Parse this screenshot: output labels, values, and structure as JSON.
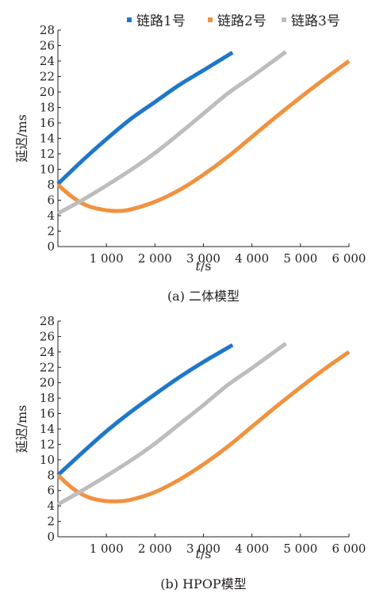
{
  "legend": {
    "items": [
      {
        "label": "链路1号",
        "color": "#1f77c9"
      },
      {
        "label": "链路2号",
        "color": "#f0923f"
      },
      {
        "label": "链路3号",
        "color": "#bdbdbd"
      }
    ]
  },
  "chart_data": [
    {
      "type": "line",
      "caption": "(a) 二体模型",
      "xlabel_italic": "t",
      "xlabel_unit": "/s",
      "ylabel": "延迟/ms",
      "xlim": [
        0,
        6000
      ],
      "ylim": [
        0,
        28
      ],
      "xticks": [
        1000,
        2000,
        3000,
        4000,
        5000,
        6000
      ],
      "xtick_labels": [
        "1 000",
        "2 000",
        "3 000",
        "4 000",
        "5 000",
        "6 000"
      ],
      "yticks": [
        0,
        2,
        4,
        6,
        8,
        10,
        12,
        14,
        16,
        18,
        20,
        22,
        24,
        26,
        28
      ],
      "ytick_labels": [
        "0",
        "2",
        "4",
        "6",
        "8",
        "10",
        "12",
        "14",
        "16",
        "18",
        "20",
        "22",
        "24",
        "26",
        "28"
      ],
      "series": [
        {
          "name": "链路1号",
          "color": "#1f77c9",
          "x": [
            0,
            500,
            1000,
            1500,
            2000,
            2500,
            3000,
            3600
          ],
          "y": [
            8.1,
            11.1,
            13.9,
            16.5,
            18.7,
            20.9,
            22.8,
            25.1
          ]
        },
        {
          "name": "链路2号",
          "color": "#f0923f",
          "x": [
            0,
            300,
            600,
            900,
            1200,
            1500,
            2000,
            2500,
            3000,
            3500,
            4000,
            4500,
            5000,
            5500,
            6000
          ],
          "y": [
            8.0,
            6.4,
            5.3,
            4.8,
            4.6,
            4.8,
            5.8,
            7.3,
            9.3,
            11.6,
            14.2,
            16.8,
            19.3,
            21.7,
            24.0
          ]
        },
        {
          "name": "链路3号",
          "color": "#bdbdbd",
          "x": [
            0,
            500,
            1000,
            1500,
            2000,
            2500,
            3000,
            3500,
            4000,
            4700
          ],
          "y": [
            4.3,
            6.0,
            7.9,
            9.9,
            12.1,
            14.6,
            17.2,
            19.8,
            22.0,
            25.2
          ]
        }
      ]
    },
    {
      "type": "line",
      "caption": "(b) HPOP模型",
      "xlabel_italic": "t",
      "xlabel_unit": "/s",
      "ylabel": "延迟/ms",
      "xlim": [
        0,
        6000
      ],
      "ylim": [
        0,
        28
      ],
      "xticks": [
        1000,
        2000,
        3000,
        4000,
        5000,
        6000
      ],
      "xtick_labels": [
        "1 000",
        "2 000",
        "3 000",
        "4 000",
        "5 000",
        "6 000"
      ],
      "yticks": [
        0,
        2,
        4,
        6,
        8,
        10,
        12,
        14,
        16,
        18,
        20,
        22,
        24,
        26,
        28
      ],
      "ytick_labels": [
        "0",
        "2",
        "4",
        "6",
        "8",
        "10",
        "12",
        "14",
        "16",
        "18",
        "20",
        "22",
        "24",
        "26",
        "28"
      ],
      "series": [
        {
          "name": "链路1号",
          "color": "#1f77c9",
          "x": [
            0,
            500,
            1000,
            1500,
            2000,
            2500,
            3000,
            3600
          ],
          "y": [
            8.0,
            10.9,
            13.7,
            16.2,
            18.5,
            20.7,
            22.7,
            24.9
          ]
        },
        {
          "name": "链路2号",
          "color": "#f0923f",
          "x": [
            0,
            300,
            600,
            900,
            1200,
            1500,
            2000,
            2500,
            3000,
            3500,
            4000,
            4500,
            5000,
            5500,
            6000
          ],
          "y": [
            8.0,
            6.3,
            5.2,
            4.7,
            4.6,
            4.8,
            5.8,
            7.4,
            9.4,
            11.7,
            14.3,
            16.9,
            19.4,
            21.8,
            24.0
          ]
        },
        {
          "name": "链路3号",
          "color": "#bdbdbd",
          "x": [
            0,
            500,
            1000,
            1500,
            2000,
            2500,
            3000,
            3500,
            4000,
            4700
          ],
          "y": [
            4.2,
            6.0,
            7.9,
            9.9,
            12.1,
            14.6,
            17.1,
            19.7,
            21.9,
            25.1
          ]
        }
      ]
    }
  ]
}
